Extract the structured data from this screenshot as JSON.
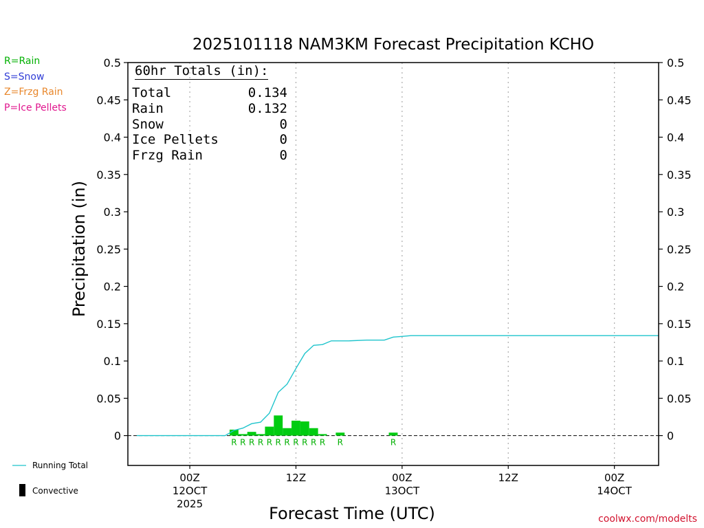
{
  "header": {
    "title": "2025101118 NAM3KM Forecast Precipitation KCHO"
  },
  "ptype_key": [
    {
      "label": "R=Rain",
      "color": "#00b000"
    },
    {
      "label": "S=Snow",
      "color": "#2e3bd6"
    },
    {
      "label": "Z=Frzg Rain",
      "color": "#e8862a"
    },
    {
      "label": "P=Ice Pellets",
      "color": "#e0168e"
    }
  ],
  "totals": {
    "header": "60hr Totals (in):",
    "rows": [
      {
        "label": "Total",
        "value": "0.134"
      },
      {
        "label": "Rain",
        "value": "0.132"
      },
      {
        "label": "Snow",
        "value": "0"
      },
      {
        "label": "Ice Pellets",
        "value": "0"
      },
      {
        "label": "Frzg Rain",
        "value": "0"
      }
    ]
  },
  "legend": {
    "running_total": "Running Total",
    "convective": "Convective",
    "running_total_color": "#1ec4cc",
    "bar_color": "#00cc11"
  },
  "footer": {
    "credit": "coolwx.com/modelts"
  },
  "chart_data": {
    "type": "bar",
    "title": "2025101118 NAM3KM Forecast Precipitation KCHO",
    "xlabel": "Forecast Time (UTC)",
    "ylabel": "Precipitation (in)",
    "ylim": [
      -0.04,
      0.5
    ],
    "xlim": [
      -1,
      59
    ],
    "yticks": [
      0,
      0.05,
      0.1,
      0.15,
      0.2,
      0.25,
      0.3,
      0.35,
      0.4,
      0.45,
      0.5
    ],
    "ytick_labels": [
      "0",
      "0.05",
      "0.1",
      "0.15",
      "0.2",
      "0.25",
      "0.3",
      "0.35",
      "0.4",
      "0.45",
      "0.5"
    ],
    "xticks": [
      {
        "x": 6,
        "lines": [
          "00Z",
          "12OCT",
          "2025"
        ]
      },
      {
        "x": 18,
        "lines": [
          "12Z"
        ]
      },
      {
        "x": 30,
        "lines": [
          "00Z",
          "13OCT"
        ]
      },
      {
        "x": 42,
        "lines": [
          "12Z"
        ]
      },
      {
        "x": 54,
        "lines": [
          "00Z",
          "14OCT"
        ]
      }
    ],
    "grid": "vertical dotted at x ticks",
    "hourly_precip": {
      "x": [
        11,
        12,
        13,
        14,
        15,
        16,
        17,
        18,
        19,
        20,
        21,
        23,
        29
      ],
      "values": [
        0.008,
        0.002,
        0.005,
        0.002,
        0.012,
        0.027,
        0.01,
        0.02,
        0.019,
        0.01,
        0.002,
        0.004,
        0.004
      ],
      "ptype": [
        "R",
        "R",
        "R",
        "R",
        "R",
        "R",
        "R",
        "R",
        "R",
        "R",
        "R",
        "R",
        "R"
      ]
    },
    "running_total": {
      "name": "Running Total",
      "x": [
        0,
        10,
        11,
        12,
        13,
        14,
        15,
        16,
        17,
        18,
        19,
        20,
        21,
        22,
        23,
        24,
        26,
        28,
        29,
        30,
        31,
        59
      ],
      "values": [
        0,
        0,
        0.007,
        0.01,
        0.016,
        0.018,
        0.03,
        0.058,
        0.069,
        0.09,
        0.11,
        0.121,
        0.122,
        0.127,
        0.127,
        0.127,
        0.128,
        0.128,
        0.132,
        0.133,
        0.134,
        0.134
      ]
    }
  }
}
